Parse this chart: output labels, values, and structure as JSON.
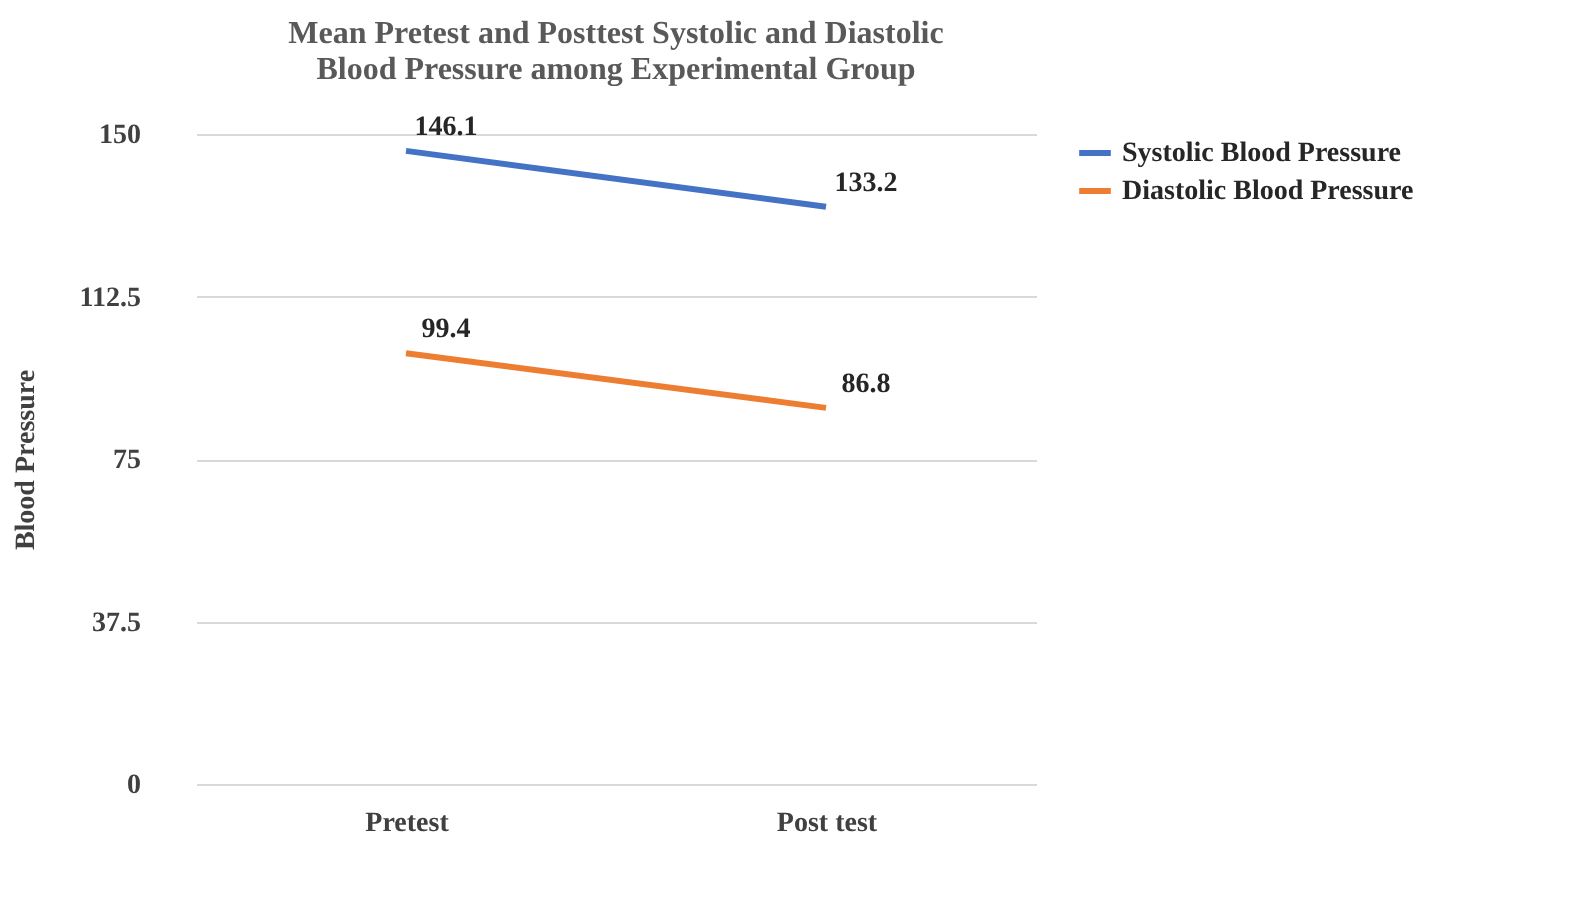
{
  "chart_data": {
    "type": "line",
    "title": [
      "Mean Pretest and Posttest Systolic and Diastolic",
      "Blood Pressure among Experimental Group"
    ],
    "ylabel": "Blood Pressure",
    "categories": [
      "Pretest",
      "Post test"
    ],
    "series": [
      {
        "name": "Systolic Blood Pressure",
        "color": "#4472c4",
        "values": [
          146.1,
          133.2
        ]
      },
      {
        "name": "Diastolic Blood Pressure",
        "color": "#ed7d31",
        "values": [
          99.4,
          86.8
        ]
      }
    ],
    "ylim": [
      0,
      150
    ],
    "yticks": [
      0,
      37.5,
      75,
      112.5,
      150
    ],
    "grid": "y",
    "legend": "right",
    "data_labels": true,
    "marker": "none"
  }
}
